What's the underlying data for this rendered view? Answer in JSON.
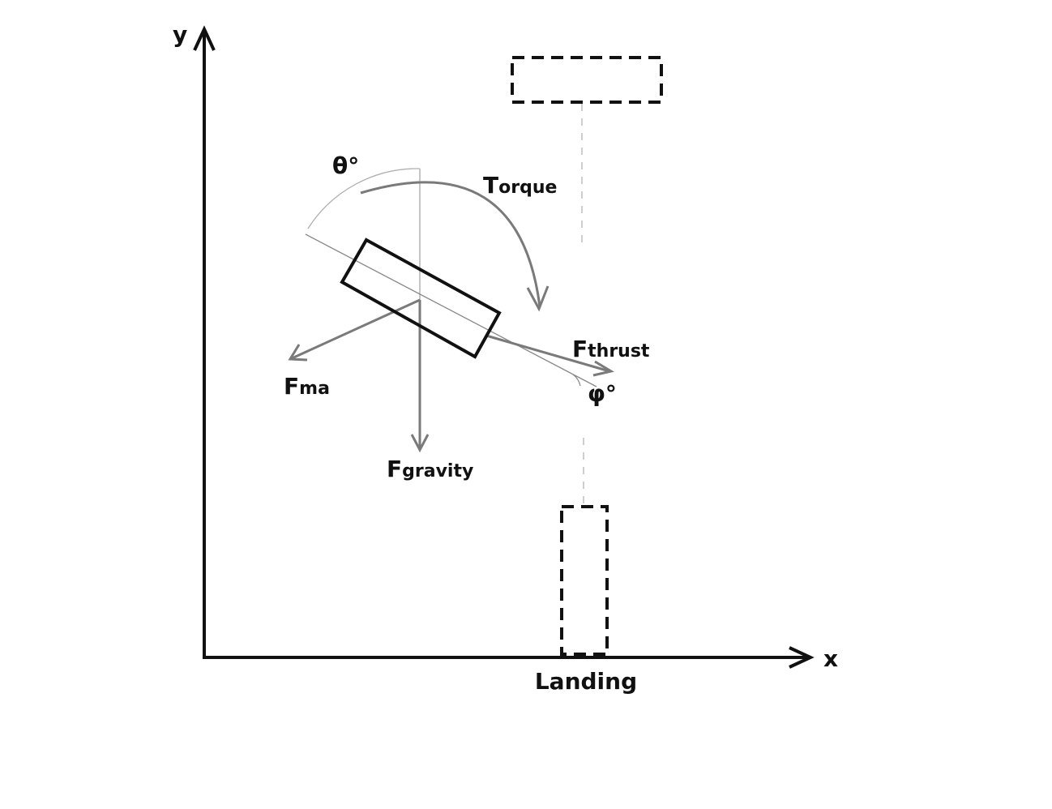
{
  "axes": {
    "x_label": "x",
    "y_label": "y"
  },
  "landing": {
    "label": "Landing"
  },
  "labels": {
    "theta": "θ°",
    "phi": "φ°",
    "torque_main": "T",
    "torque_sub": "orque",
    "thrust_main": "F",
    "thrust_sub": "thrust",
    "ma_main": "F",
    "ma_sub": "ma",
    "gravity_main": "F",
    "gravity_sub": "gravity"
  },
  "colors": {
    "ink": "#111111",
    "force_arrow": "#7a7a7a",
    "guide_line": "#b5b5b5"
  }
}
